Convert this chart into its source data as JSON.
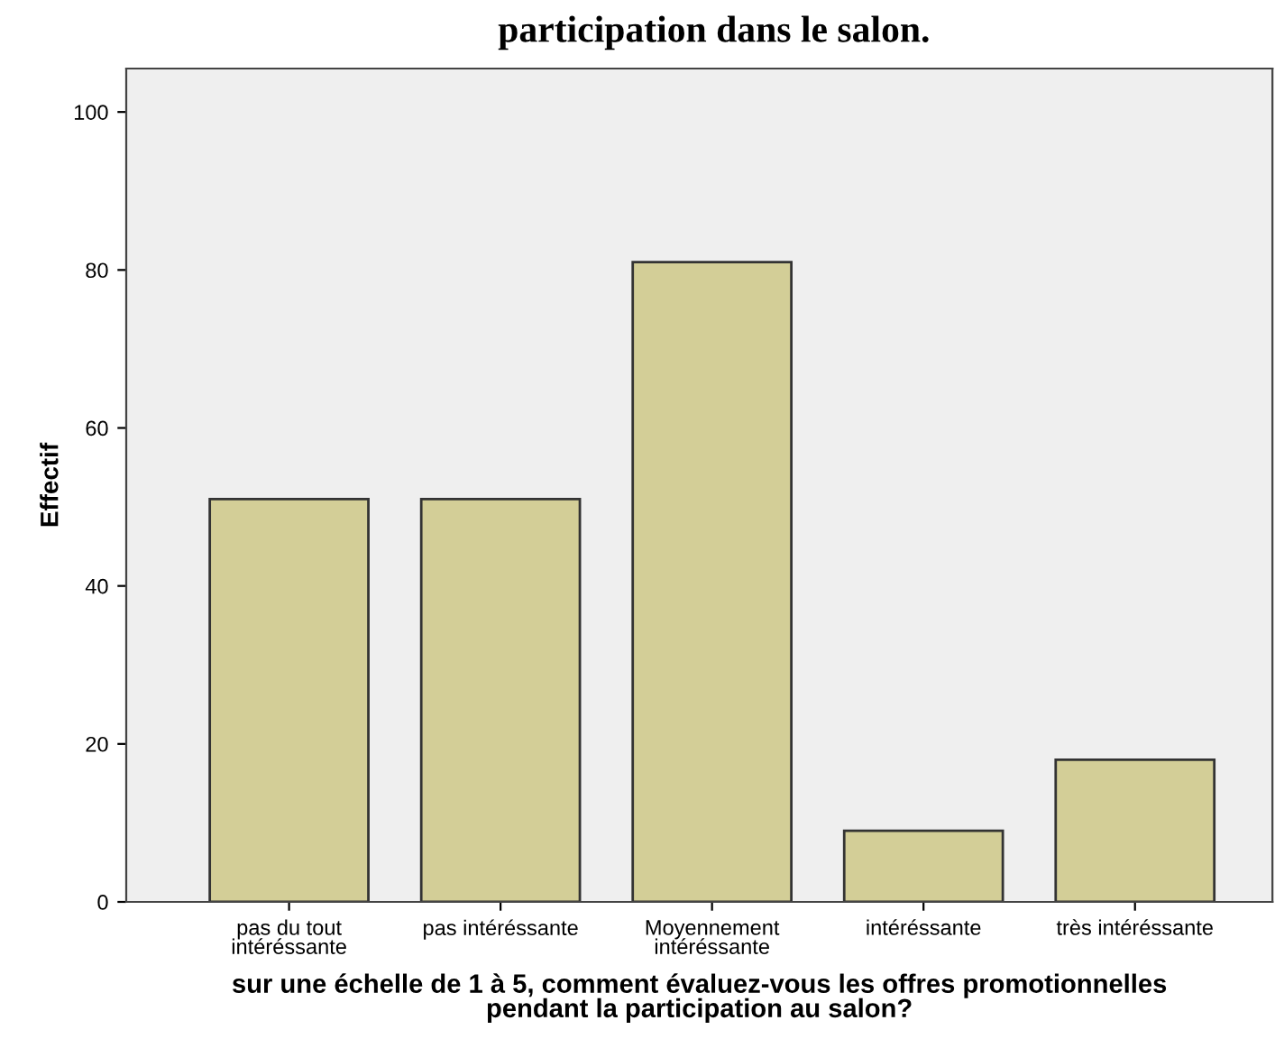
{
  "chart_data": {
    "type": "bar",
    "title": "participation dans le salon.",
    "xlabel": "sur une échelle de 1 à 5, comment évaluez-vous les offres promotionnelles\npendant la participation au salon?",
    "ylabel": "Effectif",
    "categories": [
      "pas du tout\nintéréssante",
      "pas intéréssante",
      "Moyennement\nintéréssante",
      "intéréssante",
      "très intéréssante"
    ],
    "values": [
      51,
      51,
      81,
      9,
      18
    ],
    "color": "#d3ce97",
    "ylim": [
      0,
      105.5
    ],
    "yticks": [
      0,
      20,
      40,
      60,
      80,
      100
    ],
    "grid": false
  }
}
